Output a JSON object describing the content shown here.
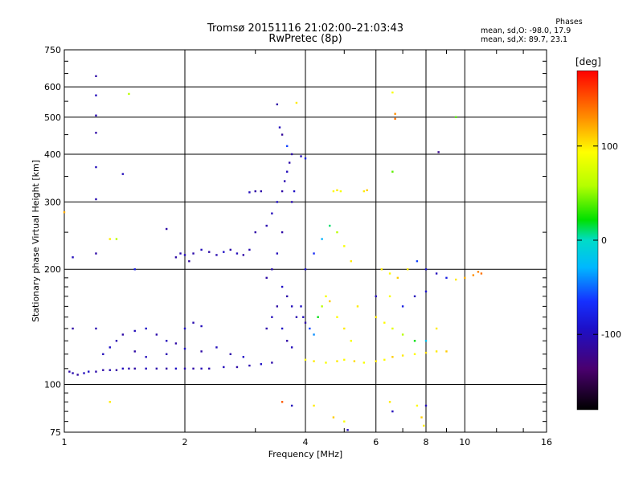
{
  "header": {
    "title": "Tromsø 20151116 21:02:00–21:03:43",
    "subtitle": "RwPretec (8p)"
  },
  "stats": {
    "heading": "Phases",
    "line_o": "mean, sd,O: -98.0, 17.9",
    "line_x": "mean, sd,X:  89.7, 23.1"
  },
  "colorbar": {
    "unit": "[deg]",
    "range": [
      -180,
      180
    ],
    "ticks": [
      100,
      0,
      -100
    ],
    "tick_labels": [
      "100",
      "0",
      "-100"
    ]
  },
  "chart_data": {
    "type": "scatter",
    "xlabel": "Frequency [MHz]",
    "ylabel": "Stationary phase Virtual Height [km]",
    "xscale": "log",
    "yscale": "log",
    "xlim": [
      1,
      16
    ],
    "ylim": [
      75,
      750
    ],
    "x_ticks": [
      1,
      2,
      4,
      6,
      8,
      10,
      16
    ],
    "x_tick_labels": [
      "1",
      "2",
      "4",
      "6",
      "8",
      "10",
      "16"
    ],
    "y_ticks": [
      75,
      100,
      200,
      300,
      400,
      500,
      600,
      750
    ],
    "y_tick_labels": [
      "75",
      "100",
      "200",
      "300",
      "400",
      "500",
      "600",
      "750"
    ],
    "grid": true,
    "color_by": "phase (deg)",
    "points": [
      [
        1.03,
        108,
        -110
      ],
      [
        1.05,
        107,
        -105
      ],
      [
        1.08,
        106,
        -112
      ],
      [
        1.12,
        107,
        -100
      ],
      [
        1.15,
        108,
        -95
      ],
      [
        1.2,
        108,
        -108
      ],
      [
        1.25,
        109,
        -110
      ],
      [
        1.3,
        109,
        -104
      ],
      [
        1.35,
        109,
        -112
      ],
      [
        1.4,
        110,
        -98
      ],
      [
        1.45,
        110,
        -105
      ],
      [
        1.5,
        110,
        -110
      ],
      [
        1.6,
        110,
        -100
      ],
      [
        1.7,
        110,
        -108
      ],
      [
        1.8,
        110,
        -112
      ],
      [
        1.9,
        110,
        -95
      ],
      [
        2.0,
        110,
        -105
      ],
      [
        2.1,
        110,
        -110
      ],
      [
        2.2,
        110,
        -102
      ],
      [
        2.3,
        110,
        -108
      ],
      [
        2.5,
        111,
        -100
      ],
      [
        2.7,
        111,
        -110
      ],
      [
        2.9,
        112,
        -105
      ],
      [
        3.1,
        113,
        -95
      ],
      [
        3.3,
        114,
        -108
      ],
      [
        1.25,
        120,
        -100
      ],
      [
        1.3,
        125,
        -95
      ],
      [
        1.35,
        130,
        -105
      ],
      [
        1.4,
        135,
        -110
      ],
      [
        1.5,
        138,
        -100
      ],
      [
        1.6,
        140,
        -95
      ],
      [
        1.7,
        135,
        -108
      ],
      [
        1.8,
        130,
        -100
      ],
      [
        1.9,
        128,
        -110
      ],
      [
        2.0,
        140,
        -95
      ],
      [
        2.1,
        145,
        -105
      ],
      [
        2.2,
        142,
        -100
      ],
      [
        1.5,
        122,
        -110
      ],
      [
        1.6,
        118,
        -100
      ],
      [
        1.8,
        120,
        -105
      ],
      [
        2.0,
        124,
        -95
      ],
      [
        2.2,
        122,
        -110
      ],
      [
        2.4,
        125,
        -100
      ],
      [
        2.6,
        120,
        -108
      ],
      [
        2.8,
        118,
        -95
      ],
      [
        1.9,
        215,
        -110
      ],
      [
        1.95,
        220,
        -105
      ],
      [
        2.0,
        218,
        -100
      ],
      [
        2.05,
        210,
        -112
      ],
      [
        2.1,
        220,
        -108
      ],
      [
        2.2,
        225,
        -100
      ],
      [
        2.3,
        222,
        -110
      ],
      [
        2.4,
        218,
        -105
      ],
      [
        2.5,
        222,
        -95
      ],
      [
        2.6,
        225,
        -108
      ],
      [
        2.7,
        220,
        -100
      ],
      [
        2.8,
        218,
        -110
      ],
      [
        2.9,
        225,
        -105
      ],
      [
        3.0,
        250,
        -110
      ],
      [
        3.2,
        260,
        -105
      ],
      [
        3.3,
        280,
        -100
      ],
      [
        3.4,
        300,
        -95
      ],
      [
        3.5,
        320,
        -110
      ],
      [
        3.55,
        340,
        -105
      ],
      [
        3.6,
        360,
        -100
      ],
      [
        3.65,
        380,
        -108
      ],
      [
        3.7,
        400,
        -110
      ],
      [
        3.6,
        420,
        -60
      ],
      [
        3.5,
        450,
        -115
      ],
      [
        3.45,
        470,
        -100
      ],
      [
        3.7,
        300,
        -105
      ],
      [
        3.75,
        320,
        -95
      ],
      [
        3.5,
        250,
        -110
      ],
      [
        3.4,
        220,
        -100
      ],
      [
        3.3,
        200,
        -105
      ],
      [
        3.2,
        190,
        -110
      ],
      [
        3.5,
        180,
        -95
      ],
      [
        3.6,
        170,
        -108
      ],
      [
        3.7,
        160,
        -100
      ],
      [
        3.8,
        150,
        -105
      ],
      [
        3.4,
        160,
        -110
      ],
      [
        3.3,
        150,
        -100
      ],
      [
        3.2,
        140,
        -108
      ],
      [
        3.5,
        140,
        -95
      ],
      [
        3.6,
        130,
        -110
      ],
      [
        3.7,
        125,
        -100
      ],
      [
        3.0,
        320,
        -110
      ],
      [
        2.9,
        318,
        -100
      ],
      [
        3.1,
        320,
        -108
      ],
      [
        3.9,
        160,
        -95
      ],
      [
        3.95,
        150,
        -100
      ],
      [
        4.0,
        145,
        -110
      ],
      [
        4.1,
        140,
        -60
      ],
      [
        4.2,
        135,
        -40
      ],
      [
        4.3,
        150,
        20
      ],
      [
        4.4,
        160,
        60
      ],
      [
        4.5,
        170,
        90
      ],
      [
        4.6,
        165,
        110
      ],
      [
        4.8,
        150,
        95
      ],
      [
        5.0,
        140,
        100
      ],
      [
        5.2,
        130,
        90
      ],
      [
        5.4,
        160,
        100
      ],
      [
        4.0,
        200,
        -90
      ],
      [
        4.2,
        220,
        -70
      ],
      [
        4.4,
        240,
        -30
      ],
      [
        4.6,
        260,
        10
      ],
      [
        4.8,
        250,
        60
      ],
      [
        5.0,
        230,
        90
      ],
      [
        5.2,
        210,
        100
      ],
      [
        4.7,
        320,
        95
      ],
      [
        4.8,
        322,
        100
      ],
      [
        4.9,
        320,
        90
      ],
      [
        5.6,
        320,
        100
      ],
      [
        5.7,
        322,
        110
      ],
      [
        4.0,
        390,
        -80
      ],
      [
        3.9,
        395,
        -100
      ],
      [
        4.0,
        116,
        95
      ],
      [
        4.2,
        115,
        100
      ],
      [
        4.5,
        114,
        90
      ],
      [
        4.8,
        115,
        100
      ],
      [
        5.0,
        116,
        95
      ],
      [
        5.3,
        115,
        105
      ],
      [
        5.6,
        114,
        90
      ],
      [
        6.0,
        115,
        100
      ],
      [
        6.3,
        116,
        95
      ],
      [
        6.6,
        118,
        110
      ],
      [
        7.0,
        119,
        100
      ],
      [
        7.5,
        120,
        95
      ],
      [
        8.0,
        121,
        105
      ],
      [
        8.5,
        122,
        100
      ],
      [
        9.0,
        122,
        110
      ],
      [
        6.2,
        200,
        100
      ],
      [
        6.5,
        195,
        95
      ],
      [
        6.8,
        190,
        110
      ],
      [
        7.2,
        200,
        100
      ],
      [
        7.6,
        210,
        -60
      ],
      [
        8.0,
        200,
        -90
      ],
      [
        8.5,
        195,
        -100
      ],
      [
        9.0,
        190,
        -80
      ],
      [
        9.5,
        188,
        100
      ],
      [
        10.0,
        190,
        120
      ],
      [
        10.5,
        193,
        130
      ],
      [
        11.0,
        195,
        140
      ],
      [
        10.8,
        197,
        135
      ],
      [
        6.0,
        150,
        100
      ],
      [
        6.3,
        145,
        95
      ],
      [
        6.6,
        140,
        80
      ],
      [
        7.0,
        135,
        60
      ],
      [
        7.5,
        130,
        20
      ],
      [
        8.0,
        130,
        -20
      ],
      [
        8.5,
        140,
        100
      ],
      [
        7.0,
        160,
        -80
      ],
      [
        7.5,
        170,
        -100
      ],
      [
        8.0,
        175,
        -90
      ],
      [
        6.5,
        170,
        90
      ],
      [
        6.0,
        170,
        -100
      ],
      [
        6.6,
        580,
        90
      ],
      [
        6.7,
        510,
        130
      ],
      [
        6.7,
        495,
        140
      ],
      [
        9.5,
        500,
        40
      ],
      [
        8.6,
        405,
        -120
      ],
      [
        6.6,
        360,
        40
      ],
      [
        3.4,
        540,
        -110
      ],
      [
        3.8,
        545,
        100
      ],
      [
        1.2,
        640,
        -110
      ],
      [
        1.2,
        570,
        -100
      ],
      [
        1.2,
        505,
        -105
      ],
      [
        1.2,
        455,
        -110
      ],
      [
        1.2,
        370,
        -100
      ],
      [
        1.2,
        305,
        -105
      ],
      [
        1.45,
        575,
        60
      ],
      [
        1.0,
        282,
        120
      ],
      [
        1.05,
        215,
        -100
      ],
      [
        1.05,
        140,
        -110
      ],
      [
        1.2,
        220,
        -110
      ],
      [
        1.2,
        140,
        -105
      ],
      [
        1.3,
        240,
        100
      ],
      [
        1.35,
        240,
        60
      ],
      [
        1.4,
        355,
        -100
      ],
      [
        1.5,
        200,
        -80
      ],
      [
        1.3,
        90,
        100
      ],
      [
        1.8,
        255,
        -110
      ],
      [
        3.5,
        90,
        150
      ],
      [
        3.7,
        88,
        -100
      ],
      [
        4.2,
        88,
        100
      ],
      [
        4.7,
        82,
        110
      ],
      [
        5.0,
        80,
        90
      ],
      [
        6.5,
        90,
        100
      ],
      [
        6.6,
        85,
        -100
      ],
      [
        7.6,
        88,
        95
      ],
      [
        7.8,
        82,
        110
      ],
      [
        7.9,
        78,
        100
      ],
      [
        8.0,
        88,
        -100
      ],
      [
        5.1,
        76,
        -100
      ]
    ]
  }
}
